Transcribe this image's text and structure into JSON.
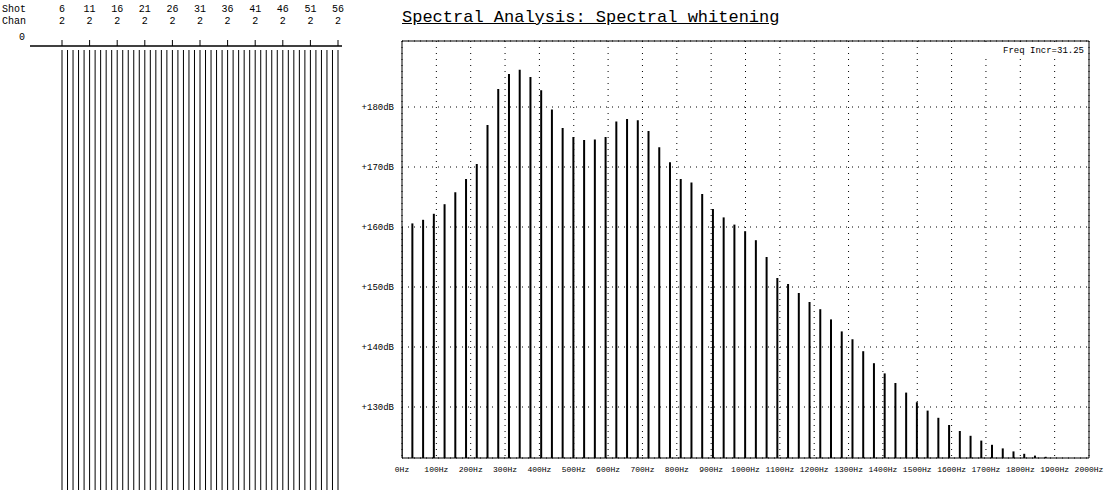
{
  "trace_panel": {
    "row_labels": [
      "Shot",
      "Chan"
    ],
    "shots": [
      6,
      11,
      16,
      21,
      26,
      31,
      36,
      41,
      46,
      51,
      56
    ],
    "channels": [
      2,
      2,
      2,
      2,
      2,
      2,
      2,
      2,
      2,
      2,
      2
    ],
    "time_label": "0"
  },
  "chart_data": {
    "type": "bar",
    "title": "Spectral Analysis: Spectral whitening",
    "annotation": "Freq Incr=31.25",
    "x": [
      0,
      31.25,
      62.5,
      93.75,
      125,
      156.25,
      187.5,
      218.75,
      250,
      281.25,
      312.5,
      343.75,
      375,
      406.25,
      437.5,
      468.75,
      500,
      531.25,
      562.5,
      593.75,
      625,
      656.25,
      687.5,
      718.75,
      750,
      781.25,
      812.5,
      843.75,
      875,
      906.25,
      937.5,
      968.75,
      1000,
      1031.25,
      1062.5,
      1093.75,
      1125,
      1156.25,
      1187.5,
      1218.75,
      1250,
      1281.25,
      1312.5,
      1343.75,
      1375,
      1406.25,
      1437.5,
      1468.75,
      1500,
      1531.25,
      1562.5,
      1593.75,
      1625,
      1656.25,
      1687.5,
      1718.75,
      1750,
      1781.25,
      1812.5,
      1843.75,
      1875
    ],
    "values": [
      160.1,
      160.6,
      161.2,
      162.2,
      163.8,
      165.8,
      168,
      170.5,
      177,
      183,
      185.5,
      186.2,
      185,
      182.8,
      179.6,
      176.5,
      175,
      174.5,
      174.6,
      175,
      177.6,
      178,
      177.8,
      176,
      173.3,
      170.8,
      168,
      167.4,
      165.5,
      163,
      161.6,
      160.4,
      159.3,
      157.8,
      155,
      151.5,
      150.5,
      149,
      147.5,
      146.3,
      144.6,
      142.6,
      141.3,
      139.3,
      137.3,
      135.6,
      134,
      132.4,
      130.8,
      129.4,
      128.2,
      127,
      126,
      125.2,
      124.4,
      123.7,
      123.1,
      122.6,
      122.2,
      121.9,
      121.7
    ],
    "color": "#000000",
    "xlim": [
      0,
      2000
    ],
    "xticks": [
      {
        "value": 0,
        "label": "0Hz"
      },
      {
        "value": 100,
        "label": "100Hz"
      },
      {
        "value": 200,
        "label": "200Hz"
      },
      {
        "value": 300,
        "label": "300Hz"
      },
      {
        "value": 400,
        "label": "400Hz"
      },
      {
        "value": 500,
        "label": "500Hz"
      },
      {
        "value": 600,
        "label": "600Hz"
      },
      {
        "value": 700,
        "label": "700Hz"
      },
      {
        "value": 800,
        "label": "800Hz"
      },
      {
        "value": 900,
        "label": "900Hz"
      },
      {
        "value": 1000,
        "label": "1000Hz"
      },
      {
        "value": 1100,
        "label": "1100Hz"
      },
      {
        "value": 1200,
        "label": "1200Hz"
      },
      {
        "value": 1300,
        "label": "1300Hz"
      },
      {
        "value": 1400,
        "label": "1400Hz"
      },
      {
        "value": 1500,
        "label": "1500Hz"
      },
      {
        "value": 1600,
        "label": "1600Hz"
      },
      {
        "value": 1700,
        "label": "1700Hz"
      },
      {
        "value": 1800,
        "label": "1800Hz"
      },
      {
        "value": 1900,
        "label": "1900Hz"
      },
      {
        "value": 2000,
        "label": "2000Hz"
      }
    ],
    "ylim": [
      121.5,
      191
    ],
    "yticks": [
      {
        "value": 130,
        "label": "+130dB"
      },
      {
        "value": 140,
        "label": "+140dB"
      },
      {
        "value": 150,
        "label": "+150dB"
      },
      {
        "value": 160,
        "label": "+160dB"
      },
      {
        "value": 170,
        "label": "+170dB"
      },
      {
        "value": 180,
        "label": "+180dB"
      }
    ],
    "grid": true
  }
}
